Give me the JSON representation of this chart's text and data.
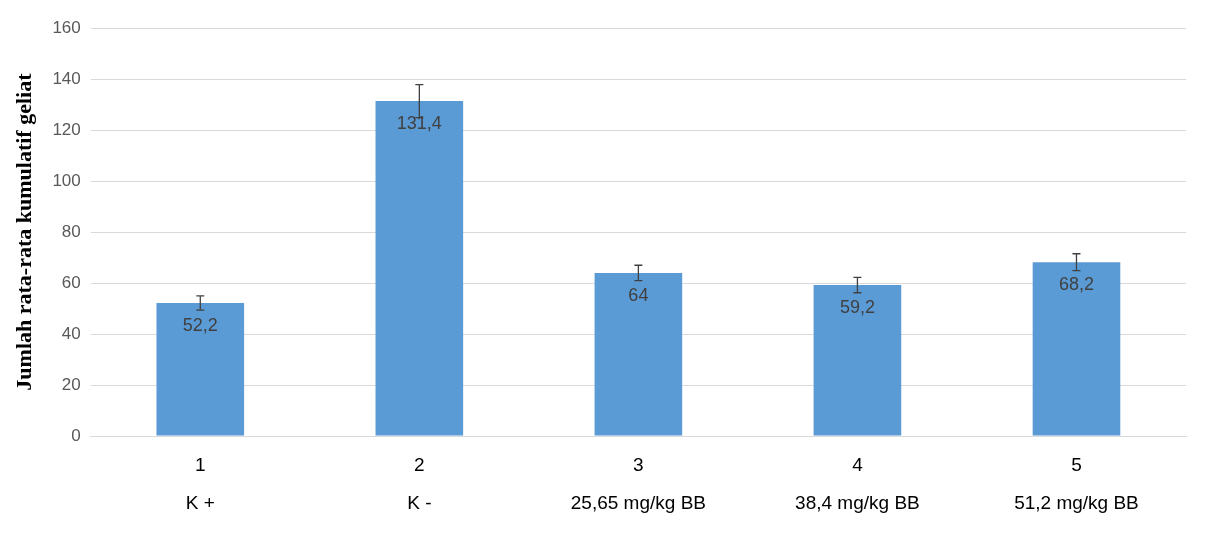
{
  "chart_data": {
    "type": "bar",
    "ylabel": "Jumlah rata-rata kumulatif geliat",
    "categories": [
      "1\nK +",
      "2\nK -",
      "3\n25,65 mg/kg BB",
      "4\n38,4 mg/kg BB",
      "5\n51,2 mg/kg BB"
    ],
    "values": [
      52.2,
      131.4,
      64,
      59.2,
      68.2
    ],
    "errors": [
      2.8,
      6.5,
      3,
      3,
      3.3
    ],
    "color": "#5b9bd5",
    "ylim": [
      0,
      160
    ],
    "yticks": [
      0,
      20,
      40,
      60,
      80,
      100,
      120,
      140,
      160
    ],
    "grid": "y",
    "value_labels": [
      "52,2",
      "131,4",
      "64",
      "59,2",
      "68,2"
    ]
  }
}
